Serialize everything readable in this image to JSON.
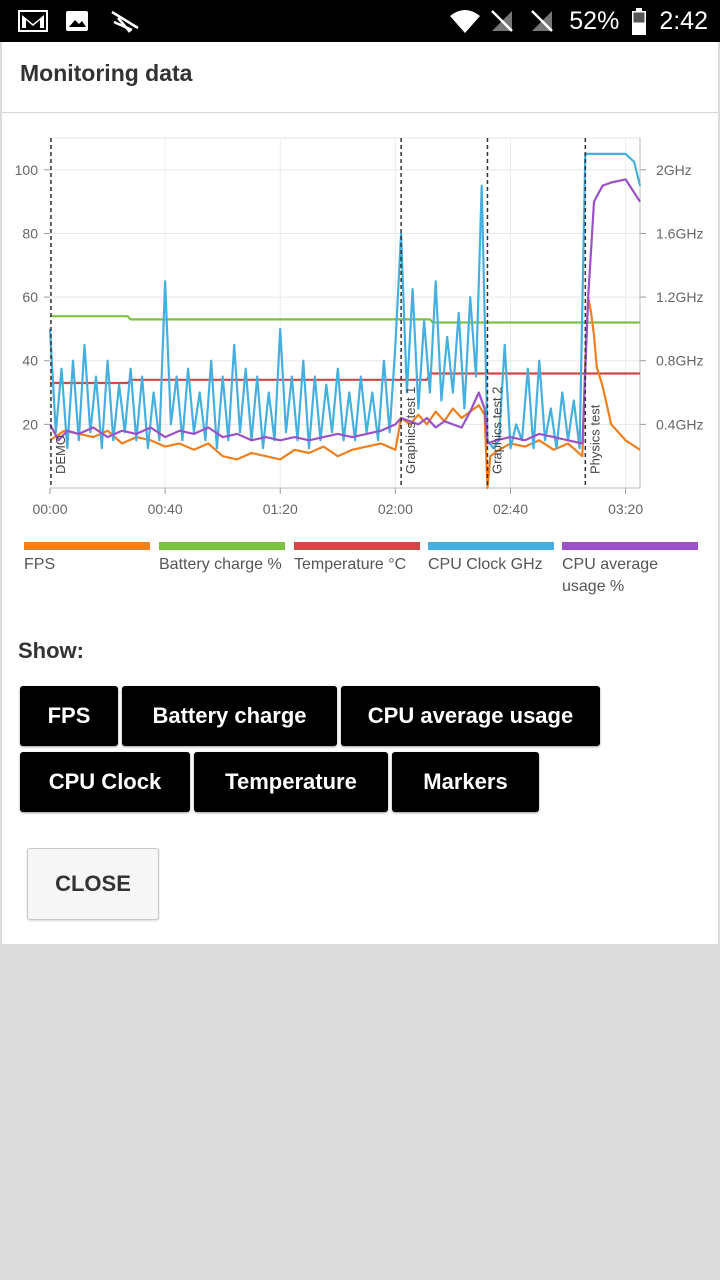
{
  "status_bar": {
    "battery": "52%",
    "time": "2:42",
    "icons": [
      "gmail-icon",
      "gallery-icon",
      "3dmark-icon",
      "wifi-icon",
      "no-sim-icon",
      "no-sim-icon",
      "battery-icon"
    ]
  },
  "dialog": {
    "title": "Monitoring data",
    "show_label": "Show:",
    "toggles": [
      "FPS",
      "Battery charge",
      "CPU average usage",
      "CPU Clock",
      "Temperature",
      "Markers"
    ],
    "close_label": "CLOSE"
  },
  "chart_data": {
    "type": "line",
    "x_ticks": [
      "00:00",
      "00:40",
      "01:20",
      "02:00",
      "02:40",
      "03:20"
    ],
    "x_range_seconds": [
      0,
      205
    ],
    "y_left_ticks": [
      "20",
      "40",
      "60",
      "80",
      "100"
    ],
    "y_left_range": [
      0,
      110
    ],
    "y_right_ticks": [
      "0.4GHz",
      "0.8GHz",
      "1.2GHz",
      "1.6GHz",
      "2GHz"
    ],
    "y_right_range_ghz": [
      0,
      2.2
    ],
    "grid": true,
    "markers": [
      {
        "label": "DEMO",
        "t": 0
      },
      {
        "label": "Graphics test 1",
        "t": 122
      },
      {
        "label": "Graphics test 2",
        "t": 152
      },
      {
        "label": "Physics test",
        "t": 186
      }
    ],
    "legend": [
      {
        "name": "FPS",
        "color": "#f07f1e"
      },
      {
        "name": "Battery charge %",
        "color": "#7cc242"
      },
      {
        "name": "Temperature °C",
        "color": "#d04747"
      },
      {
        "name": "CPU Clock GHz",
        "color": "#45b0e0"
      },
      {
        "name": "CPU average usage %",
        "color": "#9b51c8"
      }
    ],
    "series": [
      {
        "name": "Battery charge %",
        "axis": "left",
        "x": [
          0,
          27,
          28,
          122,
          132,
          133,
          186,
          205
        ],
        "values": [
          54,
          54,
          53,
          53,
          53,
          52,
          52,
          52
        ]
      },
      {
        "name": "Temperature °C",
        "axis": "left",
        "x": [
          0,
          27,
          28,
          120,
          131,
          132,
          186,
          205
        ],
        "values": [
          33,
          33,
          34,
          34,
          34,
          36,
          36,
          36
        ]
      },
      {
        "name": "FPS",
        "axis": "left",
        "x": [
          0,
          5,
          10,
          15,
          20,
          25,
          30,
          35,
          40,
          45,
          50,
          55,
          60,
          65,
          70,
          75,
          80,
          85,
          90,
          95,
          100,
          105,
          110,
          115,
          120,
          122,
          125,
          128,
          131,
          134,
          137,
          140,
          143,
          146,
          149,
          151,
          152,
          153,
          156,
          160,
          165,
          170,
          175,
          180,
          185,
          186,
          187,
          188,
          189,
          190,
          192,
          195,
          200,
          205
        ],
        "values": [
          15,
          18,
          17,
          16,
          18,
          14,
          16,
          15,
          13,
          14,
          12,
          14,
          10,
          9,
          11,
          10,
          9,
          12,
          11,
          13,
          10,
          12,
          13,
          14,
          12,
          22,
          20,
          23,
          20,
          24,
          21,
          25,
          22,
          24,
          26,
          23,
          0,
          10,
          12,
          14,
          13,
          15,
          12,
          14,
          10,
          40,
          60,
          55,
          48,
          38,
          32,
          20,
          15,
          12
        ]
      },
      {
        "name": "CPU Clock GHz",
        "axis": "right",
        "x": [
          0,
          2,
          4,
          6,
          8,
          10,
          12,
          14,
          16,
          18,
          20,
          22,
          24,
          26,
          28,
          30,
          32,
          34,
          36,
          38,
          40,
          42,
          44,
          46,
          48,
          50,
          52,
          54,
          56,
          58,
          60,
          62,
          64,
          66,
          68,
          70,
          72,
          74,
          76,
          78,
          80,
          82,
          84,
          86,
          88,
          90,
          92,
          94,
          96,
          98,
          100,
          102,
          104,
          106,
          108,
          110,
          112,
          114,
          116,
          118,
          120,
          122,
          124,
          126,
          128,
          130,
          132,
          134,
          136,
          138,
          140,
          142,
          144,
          146,
          148,
          150,
          152,
          154,
          156,
          158,
          160,
          162,
          164,
          166,
          168,
          170,
          172,
          174,
          176,
          178,
          180,
          182,
          184,
          186,
          187,
          190,
          195,
          200,
          203,
          205
        ],
        "values": [
          1.0,
          0.35,
          0.75,
          0.25,
          0.8,
          0.3,
          0.9,
          0.35,
          0.7,
          0.25,
          0.8,
          0.3,
          0.65,
          0.35,
          0.75,
          0.3,
          0.7,
          0.25,
          0.6,
          0.3,
          1.3,
          0.4,
          0.7,
          0.3,
          0.75,
          0.35,
          0.6,
          0.3,
          0.8,
          0.25,
          0.7,
          0.3,
          0.9,
          0.35,
          0.75,
          0.3,
          0.7,
          0.25,
          0.6,
          0.3,
          1.0,
          0.35,
          0.7,
          0.3,
          0.8,
          0.25,
          0.7,
          0.3,
          0.65,
          0.35,
          0.75,
          0.3,
          0.6,
          0.3,
          0.7,
          0.35,
          0.6,
          0.3,
          0.8,
          0.35,
          0.9,
          1.6,
          0.6,
          1.25,
          0.5,
          1.05,
          0.6,
          1.3,
          0.55,
          0.95,
          0.6,
          1.1,
          0.5,
          1.2,
          0.7,
          1.9,
          0.3,
          0.25,
          0.3,
          0.9,
          0.25,
          0.4,
          0.3,
          0.75,
          0.25,
          0.8,
          0.3,
          0.5,
          0.25,
          0.6,
          0.3,
          0.55,
          0.25,
          2.1,
          2.1,
          2.1,
          2.1,
          2.1,
          2.05,
          1.9
        ]
      },
      {
        "name": "CPU average usage %",
        "axis": "left",
        "x": [
          0,
          3,
          6,
          10,
          15,
          20,
          25,
          30,
          35,
          40,
          45,
          50,
          55,
          60,
          65,
          70,
          75,
          80,
          85,
          90,
          95,
          100,
          105,
          110,
          115,
          120,
          122,
          125,
          128,
          131,
          134,
          137,
          140,
          143,
          146,
          149,
          151,
          152,
          155,
          160,
          165,
          170,
          175,
          180,
          185,
          187,
          189,
          192,
          195,
          200,
          205
        ],
        "values": [
          20,
          15,
          18,
          17,
          19,
          16,
          18,
          17,
          19,
          16,
          18,
          17,
          19,
          16,
          17,
          15,
          16,
          15,
          16,
          15,
          16,
          17,
          16,
          17,
          18,
          20,
          22,
          21,
          20,
          22,
          19,
          21,
          20,
          19,
          24,
          30,
          25,
          14,
          15,
          16,
          15,
          17,
          16,
          15,
          14,
          60,
          90,
          95,
          96,
          97,
          90
        ]
      }
    ]
  }
}
